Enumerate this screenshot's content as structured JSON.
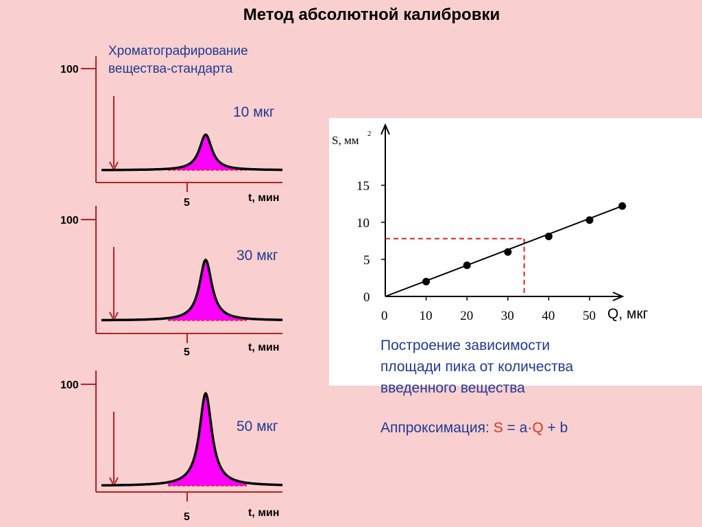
{
  "title": "Метод абсолютной калибровки",
  "intro": {
    "line1": "Хроматографирование",
    "line2": "вещества-стандарта"
  },
  "chromatograms": [
    {
      "amount_label": "10 мкг",
      "y_tick": "100",
      "x_tick": "5",
      "x_label": "t, мин",
      "relative_height": 0.35
    },
    {
      "amount_label": "30 мкг",
      "y_tick": "100",
      "x_tick": "5",
      "x_label": "t, мин",
      "relative_height": 0.6
    },
    {
      "amount_label": "50 мкг",
      "y_tick": "100",
      "x_tick": "5",
      "x_label": "t, мин",
      "relative_height": 0.91
    }
  ],
  "colors": {
    "background": "#f9cfcf",
    "axis_red": "#b52025",
    "peak_fill": "#ff00ff",
    "text_blue": "#1f3a93",
    "highlight_red": "#e0311a",
    "dashed_red": "#e02020"
  },
  "chart_data": {
    "type": "scatter",
    "ylabel": "S, мм",
    "ylabel_sup": "2",
    "xlabel": "Q, мкг",
    "x_ticks": [
      "0",
      "10",
      "20",
      "30",
      "40",
      "50"
    ],
    "y_ticks": [
      "0",
      "5",
      "10",
      "15"
    ],
    "xlim": [
      0,
      60
    ],
    "ylim": [
      0,
      17
    ],
    "points": [
      {
        "x": 10,
        "y": 2
      },
      {
        "x": 20,
        "y": 4.2
      },
      {
        "x": 30,
        "y": 6
      },
      {
        "x": 40,
        "y": 8.1
      },
      {
        "x": 50,
        "y": 10.3
      },
      {
        "x": 58,
        "y": 12.2
      }
    ],
    "fit_line": {
      "x": [
        0,
        58
      ],
      "y": [
        0,
        12.2
      ]
    },
    "dashed_guide": {
      "x": 34,
      "y": 7.8
    },
    "grid": false
  },
  "description": {
    "line1": "Построение зависимости",
    "line2": "площади пика от количества",
    "line3": "введенного вещества"
  },
  "approx": {
    "prefix": "Аппроксимация:",
    "s": "S",
    "eq": " = a·",
    "q": "Q",
    "rest": " + b"
  }
}
